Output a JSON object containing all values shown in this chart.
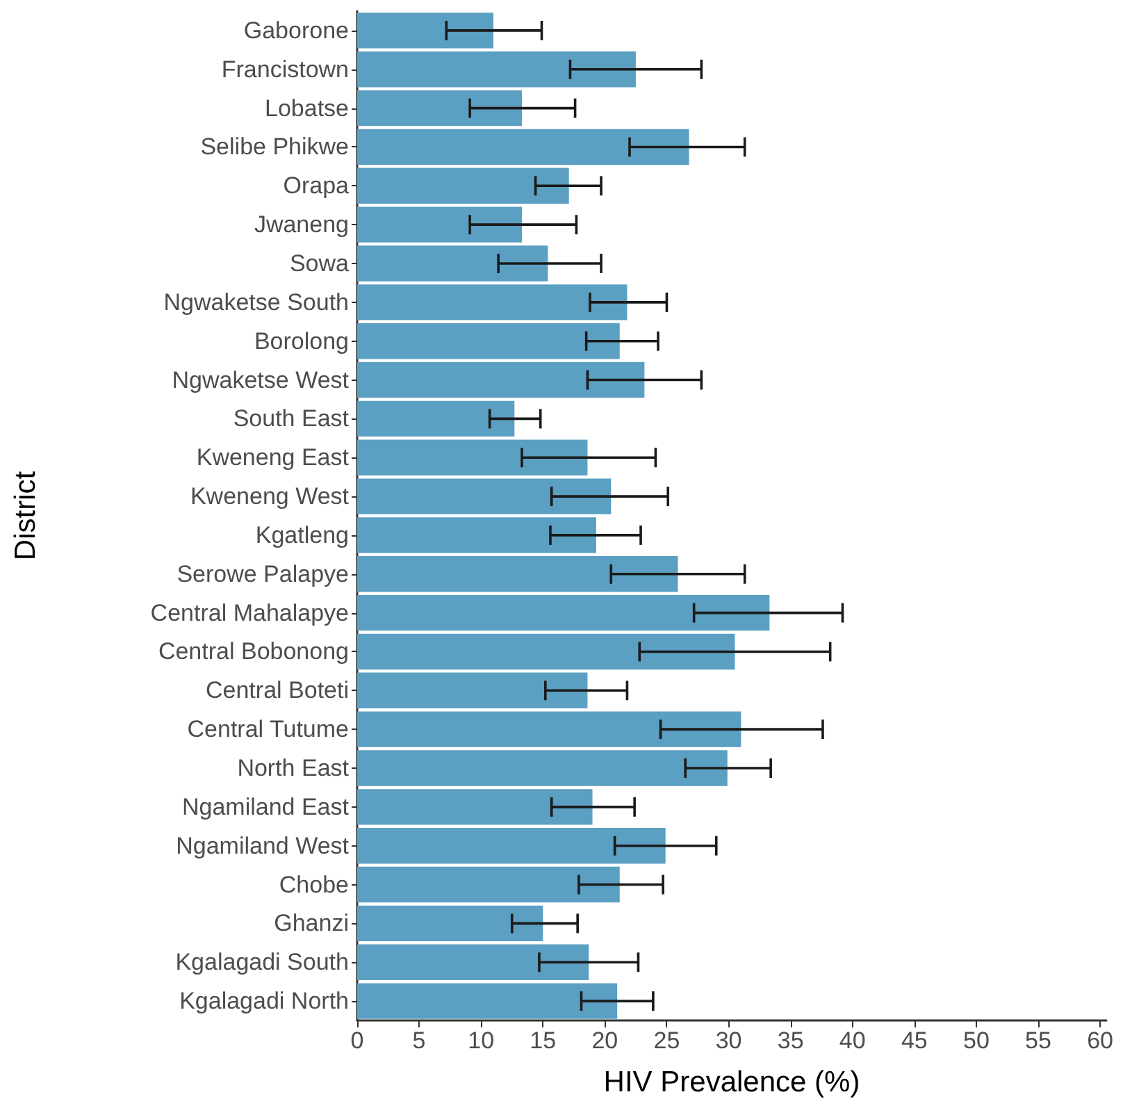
{
  "chart_data": {
    "type": "bar",
    "orientation": "horizontal",
    "xlabel": "HIV Prevalence (%)",
    "ylabel": "District",
    "categories": [
      "Gaborone",
      "Francistown",
      "Lobatse",
      "Selibe Phikwe",
      "Orapa",
      "Jwaneng",
      "Sowa",
      "Ngwaketse South",
      "Borolong",
      "Ngwaketse West",
      "South East",
      "Kweneng East",
      "Kweneng West",
      "Kgatleng",
      "Serowe Palapye",
      "Central Mahalapye",
      "Central Bobonong",
      "Central Boteti",
      "Central Tutume",
      "North East",
      "Ngamiland East",
      "Ngamiland West",
      "Chobe",
      "Ghanzi",
      "Kgalagadi South",
      "Kgalagadi North"
    ],
    "values": [
      11.0,
      22.5,
      13.3,
      26.8,
      17.1,
      13.3,
      15.4,
      21.8,
      21.2,
      23.2,
      12.7,
      18.6,
      20.5,
      19.3,
      25.9,
      33.3,
      30.5,
      18.6,
      31.0,
      29.9,
      19.0,
      24.9,
      21.2,
      15.0,
      18.7,
      21.0
    ],
    "errors": [
      [
        7.2,
        14.9
      ],
      [
        17.2,
        27.8
      ],
      [
        9.1,
        17.6
      ],
      [
        22.0,
        31.3
      ],
      [
        14.4,
        19.7
      ],
      [
        9.1,
        17.7
      ],
      [
        11.4,
        19.7
      ],
      [
        18.8,
        25.0
      ],
      [
        18.5,
        24.3
      ],
      [
        18.6,
        27.8
      ],
      [
        10.7,
        14.8
      ],
      [
        13.3,
        24.1
      ],
      [
        15.7,
        25.1
      ],
      [
        15.6,
        22.9
      ],
      [
        20.5,
        31.3
      ],
      [
        27.2,
        39.2
      ],
      [
        22.8,
        38.2
      ],
      [
        15.2,
        21.8
      ],
      [
        24.5,
        37.6
      ],
      [
        26.5,
        33.4
      ],
      [
        15.7,
        22.4
      ],
      [
        20.8,
        29.0
      ],
      [
        17.9,
        24.7
      ],
      [
        12.5,
        17.8
      ],
      [
        14.7,
        22.7
      ],
      [
        18.1,
        23.9
      ]
    ],
    "color": "#5b9fc2",
    "xlim": [
      0,
      60.5
    ],
    "xticks": [
      0,
      5,
      10,
      15,
      20,
      25,
      30,
      35,
      40,
      45,
      50,
      55,
      60
    ]
  }
}
